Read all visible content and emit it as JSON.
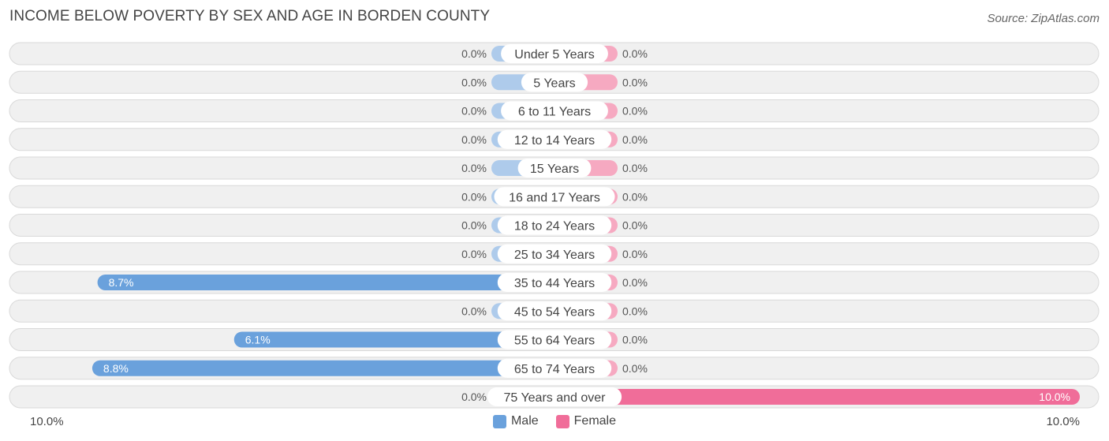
{
  "title": "INCOME BELOW POVERTY BY SEX AND AGE IN BORDEN COUNTY",
  "source": "Source: ZipAtlas.com",
  "colors": {
    "male_small": "#aecbeb",
    "male_large": "#6aa1dc",
    "female_small": "#f6a9c1",
    "female_large": "#f06d99"
  },
  "chart_data": {
    "type": "bar",
    "orientation": "horizontal-diverging",
    "categories": [
      "Under 5 Years",
      "5 Years",
      "6 to 11 Years",
      "12 to 14 Years",
      "15 Years",
      "16 and 17 Years",
      "18 to 24 Years",
      "25 to 34 Years",
      "35 to 44 Years",
      "45 to 54 Years",
      "55 to 64 Years",
      "65 to 74 Years",
      "75 Years and over"
    ],
    "series": [
      {
        "name": "Male",
        "values": [
          0.0,
          0.0,
          0.0,
          0.0,
          0.0,
          0.0,
          0.0,
          0.0,
          8.7,
          0.0,
          6.1,
          8.8,
          0.0
        ],
        "labels": [
          "0.0%",
          "0.0%",
          "0.0%",
          "0.0%",
          "0.0%",
          "0.0%",
          "0.0%",
          "0.0%",
          "8.7%",
          "0.0%",
          "6.1%",
          "8.8%",
          "0.0%"
        ]
      },
      {
        "name": "Female",
        "values": [
          0.0,
          0.0,
          0.0,
          0.0,
          0.0,
          0.0,
          0.0,
          0.0,
          0.0,
          0.0,
          0.0,
          0.0,
          10.0
        ],
        "labels": [
          "0.0%",
          "0.0%",
          "0.0%",
          "0.0%",
          "0.0%",
          "0.0%",
          "0.0%",
          "0.0%",
          "0.0%",
          "0.0%",
          "0.0%",
          "0.0%",
          "10.0%"
        ]
      }
    ],
    "xlim": [
      -10,
      10
    ],
    "axis_labels": {
      "left": "10.0%",
      "right": "10.0%"
    },
    "legend": {
      "placement": "bottom-center",
      "entries": [
        "Male",
        "Female"
      ]
    },
    "grid": false
  }
}
